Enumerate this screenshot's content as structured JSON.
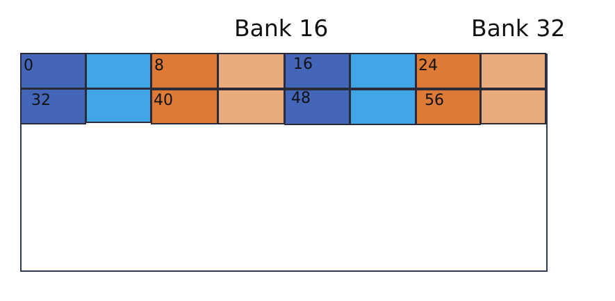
{
  "bank_labels": {
    "bank16": "Bank 16",
    "bank32": "Bank 32"
  },
  "colors": {
    "dark_blue": "#4466b8",
    "light_blue": "#41a5e6",
    "dark_orange": "#dd7a36",
    "light_orange": "#e8ab7e",
    "border": "#2a2a38"
  },
  "rows": [
    {
      "cells": [
        {
          "label": "0",
          "color": "dark_blue"
        },
        {
          "label": "",
          "color": "light_blue"
        },
        {
          "label": "8",
          "color": "dark_orange"
        },
        {
          "label": "",
          "color": "light_orange"
        },
        {
          "label": "16",
          "color": "dark_blue"
        },
        {
          "label": "",
          "color": "light_blue"
        },
        {
          "label": "24",
          "color": "dark_orange"
        },
        {
          "label": "",
          "color": "light_orange"
        }
      ]
    },
    {
      "cells": [
        {
          "label": "32",
          "color": "dark_blue"
        },
        {
          "label": "",
          "color": "light_blue"
        },
        {
          "label": "40",
          "color": "dark_orange"
        },
        {
          "label": "",
          "color": "light_orange"
        },
        {
          "label": "48",
          "color": "dark_blue"
        },
        {
          "label": "",
          "color": "light_blue"
        },
        {
          "label": "56",
          "color": "dark_orange"
        },
        {
          "label": "",
          "color": "light_orange"
        }
      ]
    }
  ]
}
